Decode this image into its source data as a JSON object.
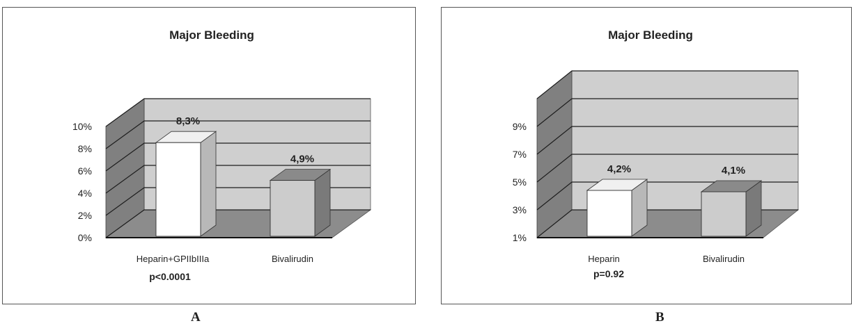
{
  "panels": [
    {
      "label": "A"
    },
    {
      "label": "B"
    }
  ],
  "colors": {
    "back_wall": "#cfcfcf",
    "side_wall": "#808080",
    "floor": "#8c8c8c",
    "bar_white": "#ffffff",
    "bar_gray": "#cccccc",
    "gridline": "#1e1e1e"
  },
  "chart_data": [
    {
      "type": "bar",
      "title": "Major Bleeding",
      "categories": [
        "Heparin+GPIIbIIIa",
        "Bivalirudin"
      ],
      "values": [
        8.3,
        4.9
      ],
      "data_labels": [
        "8,3%",
        "4,9%"
      ],
      "y_ticks": [
        "0%",
        "2%",
        "4%",
        "6%",
        "8%",
        "10%"
      ],
      "ylim": [
        0,
        10
      ],
      "annotation": "p<0.0001",
      "bar_colors": [
        "#ffffff",
        "#cccccc"
      ],
      "grid": true,
      "three_d": true
    },
    {
      "type": "bar",
      "title": "Major Bleeding",
      "categories": [
        "Heparin",
        "Bivalirudin"
      ],
      "values": [
        4.2,
        4.1
      ],
      "data_labels": [
        "4,2%",
        "4,1%"
      ],
      "y_ticks": [
        "1%",
        "3%",
        "5%",
        "7%",
        "9%"
      ],
      "ylim": [
        1,
        11
      ],
      "annotation": "p=0.92",
      "bar_colors": [
        "#ffffff",
        "#cccccc"
      ],
      "grid": true,
      "three_d": true
    }
  ]
}
